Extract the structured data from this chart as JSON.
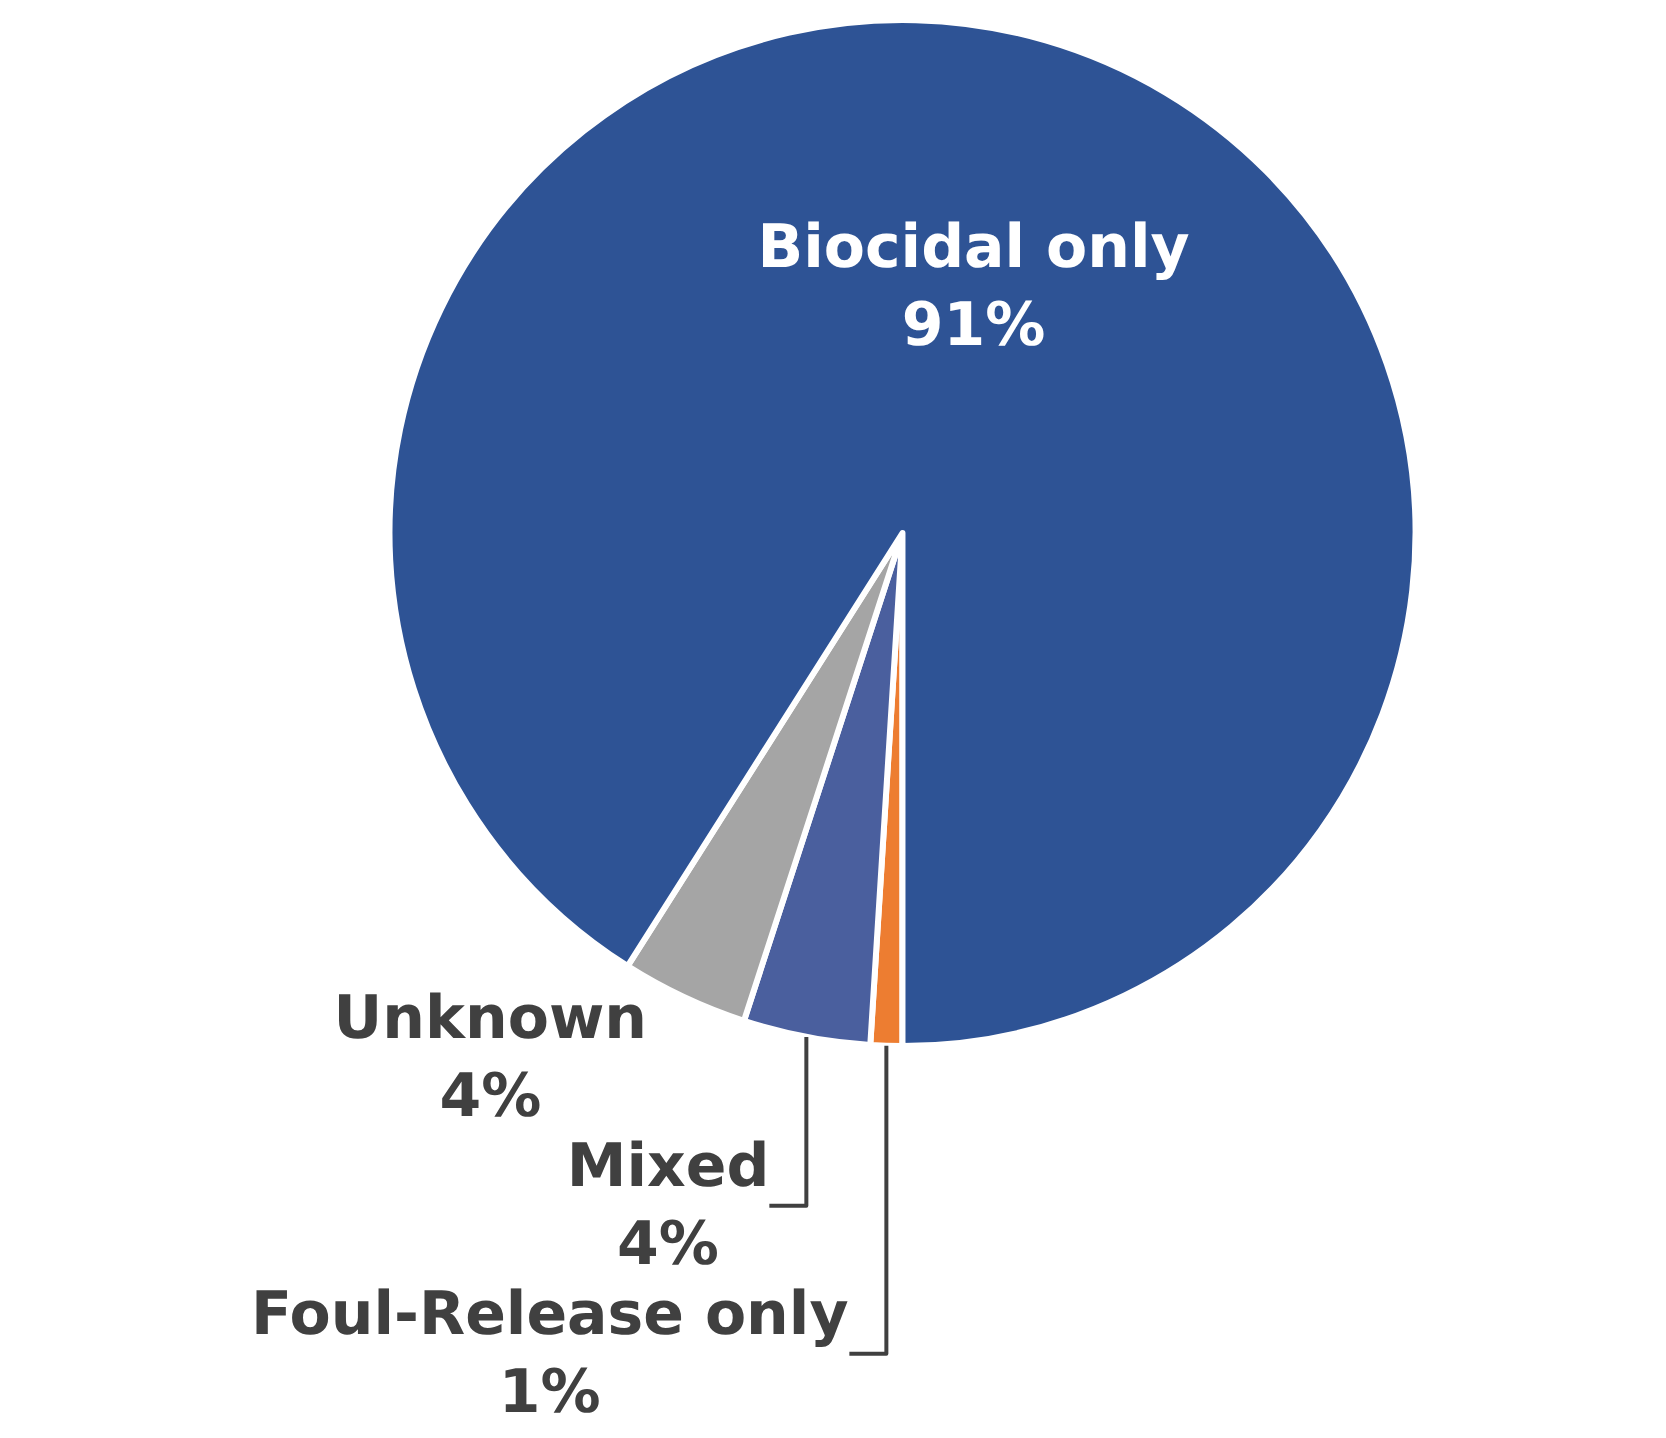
{
  "chart_data": {
    "type": "pie",
    "categories": [
      "Foul-Release only",
      "Mixed",
      "Unknown",
      "Biocidal only"
    ],
    "values": [
      1,
      4,
      4,
      91
    ],
    "value_labels": [
      "1%",
      "4%",
      "4%",
      "91%"
    ],
    "colors": [
      "#ed7d31",
      "#4a5f9e",
      "#a5a5a5",
      "#2e5395"
    ],
    "legend": false
  }
}
